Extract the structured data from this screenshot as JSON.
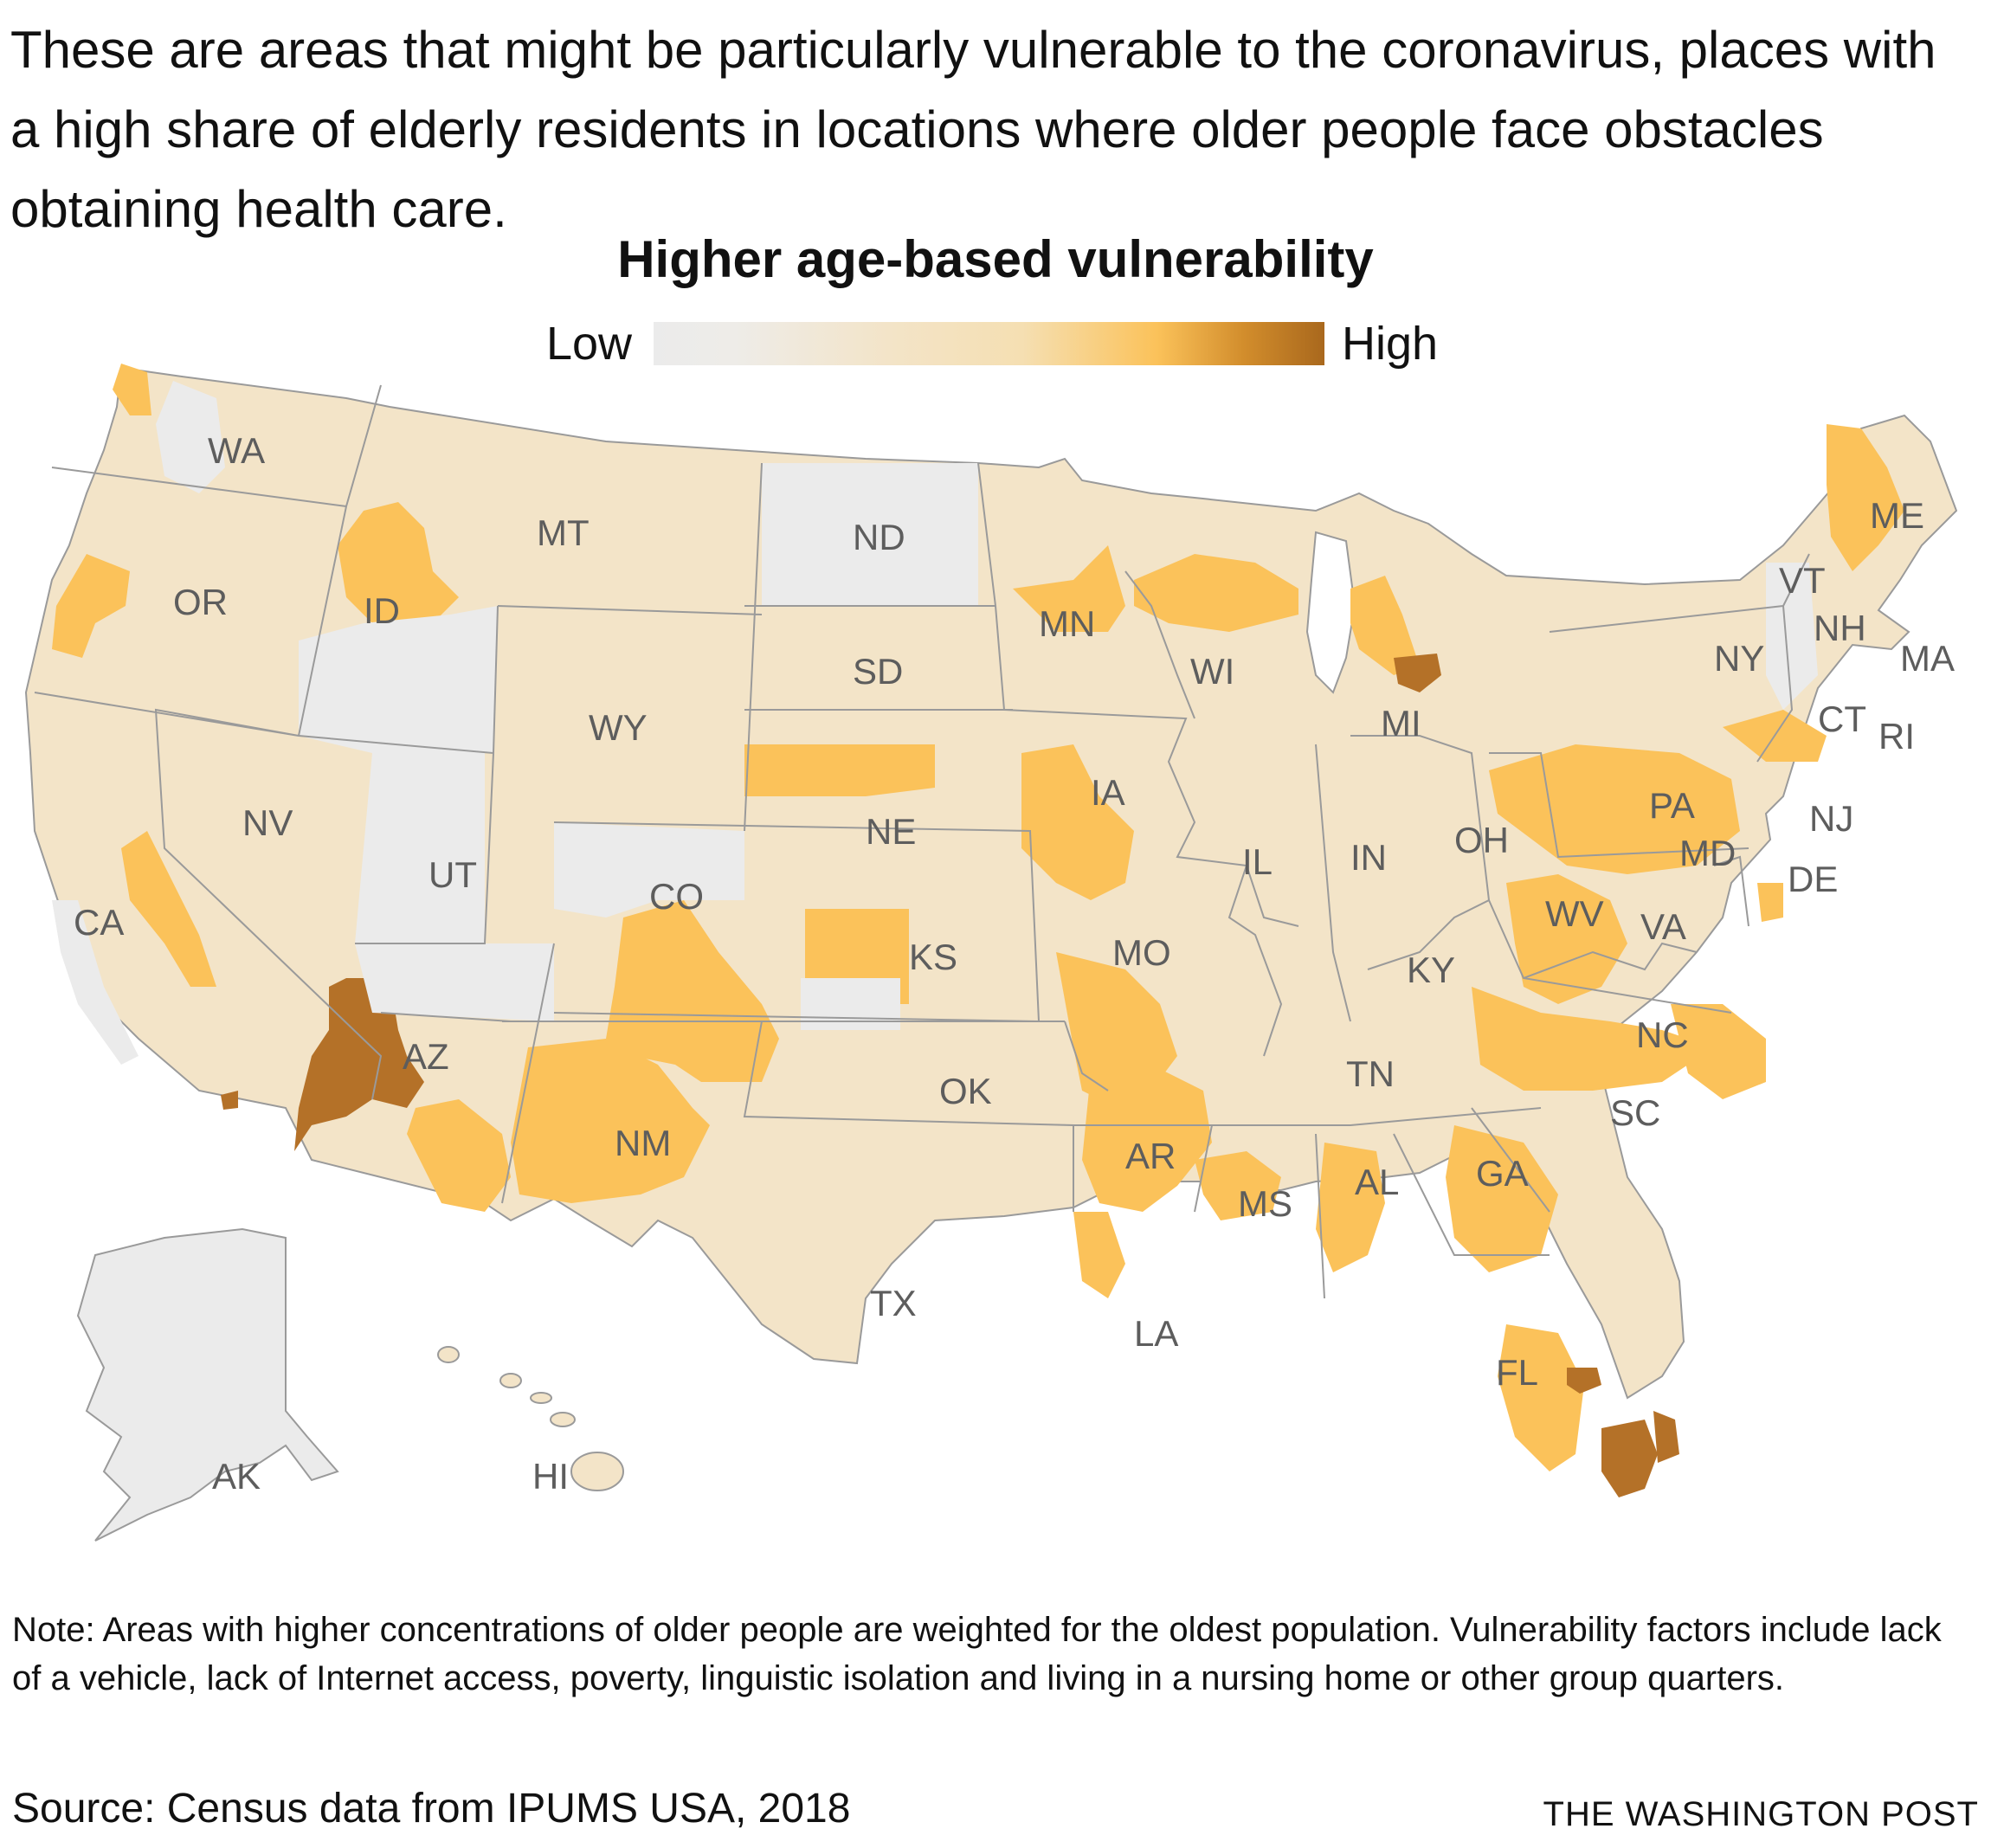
{
  "intro_text": "These are areas that might be particularly vulnerable to the coronavirus, places with a high share of elderly residents in locations where older people face obstacles obtaining health care.",
  "map_title": "Higher age-based vulnerability",
  "legend": {
    "low_label": "Low",
    "high_label": "High",
    "colors": [
      "#ebebeb",
      "#f3e4c8",
      "#fbc25a",
      "#a9681d"
    ]
  },
  "colors": {
    "no_data_low": "#ebebeb",
    "low": "#f3e4c8",
    "medium": "#fbc25a",
    "high": "#b47128",
    "border": "#9a9a9a"
  },
  "state_labels": {
    "WA": "WA",
    "OR": "OR",
    "CA": "CA",
    "NV": "NV",
    "ID": "ID",
    "MT": "MT",
    "WY": "WY",
    "UT": "UT",
    "AZ": "AZ",
    "CO": "CO",
    "NM": "NM",
    "ND": "ND",
    "SD": "SD",
    "NE": "NE",
    "KS": "KS",
    "OK": "OK",
    "TX": "TX",
    "MN": "MN",
    "IA": "IA",
    "MO": "MO",
    "AR": "AR",
    "LA": "LA",
    "WI": "WI",
    "IL": "IL",
    "MI": "MI",
    "IN": "IN",
    "OH": "OH",
    "KY": "KY",
    "TN": "TN",
    "MS": "MS",
    "AL": "AL",
    "GA": "GA",
    "FL": "FL",
    "SC": "SC",
    "NC": "NC",
    "VA": "VA",
    "WV": "WV",
    "PA": "PA",
    "NY": "NY",
    "VT": "VT",
    "NH": "NH",
    "ME": "ME",
    "MA": "MA",
    "CT": "CT",
    "RI": "RI",
    "NJ": "NJ",
    "DE": "DE",
    "MD": "MD",
    "AK": "AK",
    "HI": "HI"
  },
  "note_text": "Note: Areas with higher concentrations of older people are weighted for the oldest population. Vulnerability factors include lack of a vehicle, lack of Internet access, poverty, linguistic isolation and living in a nursing home or other group quarters.",
  "source_text": "Source: Census data from IPUMS USA, 2018",
  "credit_text": "THE WASHINGTON POST"
}
